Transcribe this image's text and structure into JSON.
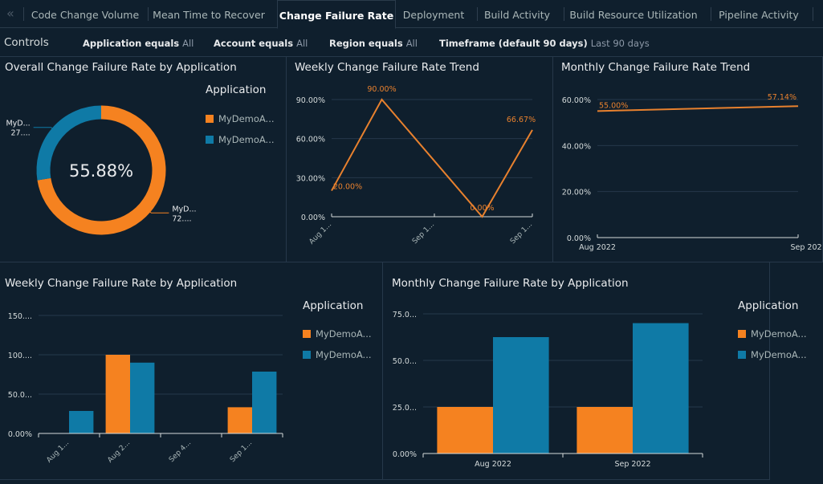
{
  "tabs": [
    {
      "label": "Code Change Volume",
      "active": false
    },
    {
      "label": "Mean Time to Recover",
      "active": false
    },
    {
      "label": "Change Failure Rate",
      "active": true
    },
    {
      "label": "Deployment",
      "active": false
    },
    {
      "label": "Build Activity",
      "active": false
    },
    {
      "label": "Build Resource Utilization",
      "active": false
    },
    {
      "label": "Pipeline Activity",
      "active": false
    }
  ],
  "tab_back_icon": "«",
  "controls": {
    "label": "Controls",
    "filters": [
      {
        "key": "Application equals",
        "value": "All"
      },
      {
        "key": "Account equals",
        "value": "All"
      },
      {
        "key": "Region equals",
        "value": "All"
      },
      {
        "key": "Timeframe (default 90 days)",
        "value": "Last 90 days"
      }
    ]
  },
  "colors": {
    "orange": "#f58220",
    "blue": "#0f7aa6",
    "line": "#e8812e",
    "grid": "#26384a",
    "axis": "#d5dbdb"
  },
  "chart_data": [
    {
      "id": "donut",
      "type": "pie",
      "title": "Overall Change Failure Rate by Application",
      "center_label": "55.88%",
      "legend_title": "Application",
      "legend_placement": "right",
      "slices": [
        {
          "label": "MyDemoA...",
          "value": 72.5,
          "color": "#f58220",
          "callout": [
            "MyD...",
            "72...."
          ]
        },
        {
          "label": "MyDemoA...",
          "value": 27.5,
          "color": "#0f7aa6",
          "callout": [
            "MyD...",
            "27...."
          ]
        }
      ]
    },
    {
      "id": "weekly-trend",
      "type": "line",
      "title": "Weekly Change Failure Rate Trend",
      "x": [
        0,
        1,
        2,
        3,
        4
      ],
      "values": [
        20.0,
        90.0,
        null,
        0.0,
        66.67
      ],
      "point_labels": [
        "20.00%",
        "90.00%",
        "",
        "0.00%",
        "66.67%"
      ],
      "x_tick_labels": [
        "Aug 1...",
        "Sep 1...",
        "Sep 1..."
      ],
      "y_ticks": [
        0,
        30,
        60,
        90
      ],
      "y_tick_labels": [
        "0.00%",
        "30.00%",
        "60.00%",
        "90.00%"
      ],
      "ylim": [
        0,
        90
      ],
      "grid": true
    },
    {
      "id": "monthly-trend",
      "type": "line",
      "title": "Monthly Change Failure Rate Trend",
      "categories": [
        "Aug 2022",
        "Sep 202"
      ],
      "values": [
        55.0,
        57.14
      ],
      "point_labels": [
        "55.00%",
        "57.14%"
      ],
      "y_ticks": [
        0,
        20,
        40,
        60
      ],
      "y_tick_labels": [
        "0.00%",
        "20.00%",
        "40.00%",
        "60.00%"
      ],
      "ylim": [
        0,
        60
      ],
      "grid": true
    },
    {
      "id": "weekly-bars",
      "type": "bar",
      "title": "Weekly Change Failure Rate by Application",
      "categories": [
        "Aug 1...",
        "Aug 2...",
        "Sep 4...",
        "Sep 1..."
      ],
      "series": [
        {
          "name": "MyDemoA...",
          "color": "#f58220",
          "values": [
            0,
            100,
            0,
            33.3
          ]
        },
        {
          "name": "MyDemoA...",
          "color": "#0f7aa6",
          "values": [
            28.6,
            90,
            0,
            78.6
          ]
        }
      ],
      "y_ticks": [
        0,
        50,
        100,
        150
      ],
      "y_tick_labels": [
        "0.00%",
        "50.0...",
        "100....",
        "150...."
      ],
      "ylim": [
        0,
        150
      ],
      "legend_title": "Application",
      "legend_placement": "right",
      "grid": true
    },
    {
      "id": "monthly-bars",
      "type": "bar",
      "title": "Monthly Change Failure Rate by Application",
      "categories": [
        "Aug 2022",
        "Sep 2022"
      ],
      "series": [
        {
          "name": "MyDemoA...",
          "color": "#f58220",
          "values": [
            25,
            25
          ]
        },
        {
          "name": "MyDemoA...",
          "color": "#0f7aa6",
          "values": [
            62.5,
            70
          ]
        }
      ],
      "y_ticks": [
        0,
        25,
        50,
        75
      ],
      "y_tick_labels": [
        "0.00%",
        "25.0...",
        "50.0...",
        "75.0..."
      ],
      "ylim": [
        0,
        75
      ],
      "legend_title": "Application",
      "legend_placement": "right",
      "grid": true
    }
  ]
}
